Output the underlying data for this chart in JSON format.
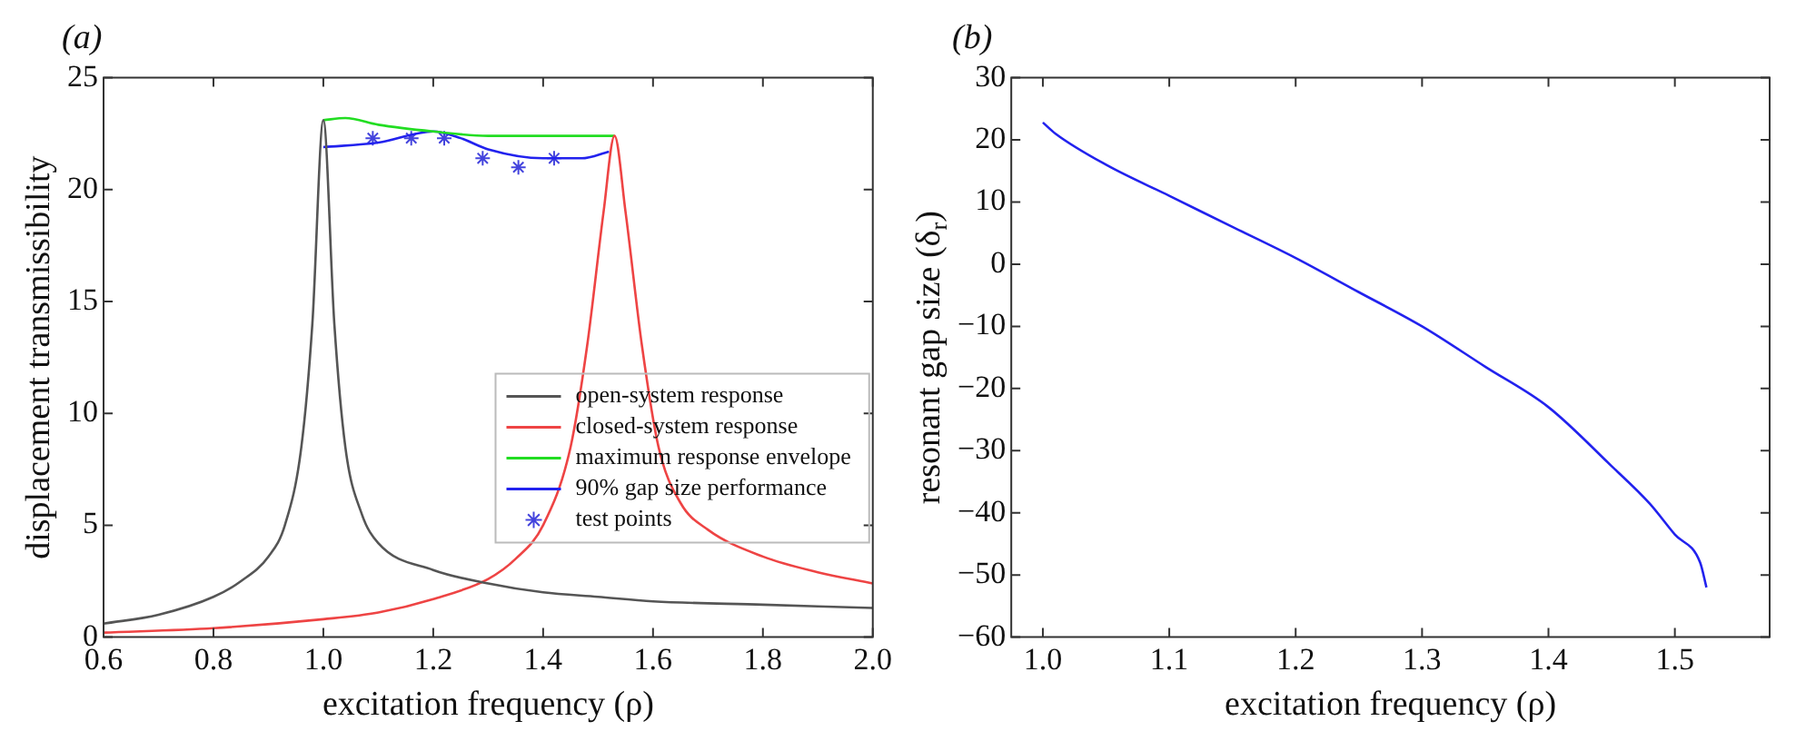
{
  "chart_data": [
    {
      "type": "line",
      "title": "(a)",
      "xlabel": "excitation frequency (ρ)",
      "ylabel": "displacement transmissibility",
      "xlim": [
        0.6,
        2.0
      ],
      "ylim": [
        0,
        25
      ],
      "xticks": [
        {
          "value": 0.6,
          "label": "0.6"
        },
        {
          "value": 0.8,
          "label": "0.8"
        },
        {
          "value": 1.0,
          "label": "1.0"
        },
        {
          "value": 1.2,
          "label": "1.2"
        },
        {
          "value": 1.4,
          "label": "1.4"
        },
        {
          "value": 1.6,
          "label": "1.6"
        },
        {
          "value": 1.8,
          "label": "1.8"
        },
        {
          "value": 2.0,
          "label": "2.0"
        }
      ],
      "yticks": [
        0,
        5,
        10,
        15,
        20,
        25
      ],
      "grid": false,
      "legend": "bottom right",
      "marker": "none",
      "series": [
        {
          "name": "open-system response",
          "color": "#555555",
          "x": [
            0.6,
            0.7,
            0.8,
            0.85,
            0.9,
            0.93,
            0.96,
            0.98,
            1.0,
            1.02,
            1.04,
            1.07,
            1.1,
            1.2,
            1.3,
            1.4,
            1.5,
            1.6,
            1.8,
            2.0
          ],
          "values": [
            0.6,
            1.0,
            1.8,
            2.5,
            3.6,
            5,
            8.5,
            14,
            23.1,
            14,
            8.5,
            5.5,
            4.2,
            3.0,
            2.4,
            2.0,
            1.8,
            1.6,
            1.45,
            1.3
          ]
        },
        {
          "name": "closed-system response",
          "color": "#ee4444",
          "x": [
            0.6,
            0.8,
            1.0,
            1.1,
            1.2,
            1.3,
            1.35,
            1.4,
            1.45,
            1.48,
            1.51,
            1.53,
            1.55,
            1.58,
            1.61,
            1.65,
            1.7,
            1.8,
            1.9,
            2.0
          ],
          "values": [
            0.2,
            0.4,
            0.8,
            1.1,
            1.7,
            2.6,
            3.5,
            5,
            8.5,
            13,
            19,
            22.4,
            19,
            13,
            8.5,
            6,
            4.8,
            3.6,
            2.9,
            2.4
          ]
        },
        {
          "name": "maximum response envelope",
          "color": "#22dd22",
          "x": [
            1.0,
            1.04,
            1.1,
            1.2,
            1.3,
            1.4,
            1.53
          ],
          "values": [
            23.1,
            23.2,
            22.9,
            22.6,
            22.4,
            22.4,
            22.4
          ]
        },
        {
          "name": "90% gap size performance",
          "color": "#2222ee",
          "x": [
            1.0,
            1.1,
            1.2,
            1.25,
            1.3,
            1.4,
            1.47,
            1.52
          ],
          "values": [
            21.9,
            22.1,
            22.6,
            22.3,
            21.8,
            21.4,
            21.4,
            21.7
          ]
        },
        {
          "name": "test points",
          "type": "scatter",
          "marker": "cross",
          "color": "#4444dd",
          "x": [
            1.09,
            1.16,
            1.22,
            1.29,
            1.355,
            1.42
          ],
          "values": [
            22.3,
            22.3,
            22.3,
            21.4,
            21.0,
            21.4
          ]
        }
      ]
    },
    {
      "type": "line",
      "title": "(b)",
      "xlabel": "excitation frequency (ρ)",
      "ylabel": "resonant gap size (δ$_{r}$)",
      "xlim": [
        0.975,
        1.575
      ],
      "ylim": [
        -60,
        30
      ],
      "xticks": [
        {
          "value": 1.0,
          "label": "1.0"
        },
        {
          "value": 1.1,
          "label": "1.1"
        },
        {
          "value": 1.2,
          "label": "1.2"
        },
        {
          "value": 1.3,
          "label": "1.3"
        },
        {
          "value": 1.4,
          "label": "1.4"
        },
        {
          "value": 1.5,
          "label": "1.5"
        }
      ],
      "yticks": [
        -60,
        -50,
        -40,
        -30,
        -20,
        -10,
        0,
        10,
        20,
        30
      ],
      "grid": false,
      "legend": false,
      "marker": "none",
      "series": [
        {
          "color": "#2222ee",
          "x": [
            1.0,
            1.01,
            1.05,
            1.1,
            1.15,
            1.2,
            1.25,
            1.3,
            1.35,
            1.4,
            1.45,
            1.48,
            1.5,
            1.52,
            1.525
          ],
          "values": [
            22.8,
            21,
            16,
            11,
            6,
            1,
            -4.5,
            -10,
            -16.5,
            -23,
            -32.5,
            -38.5,
            -43.5,
            -48,
            -52
          ]
        }
      ]
    }
  ]
}
